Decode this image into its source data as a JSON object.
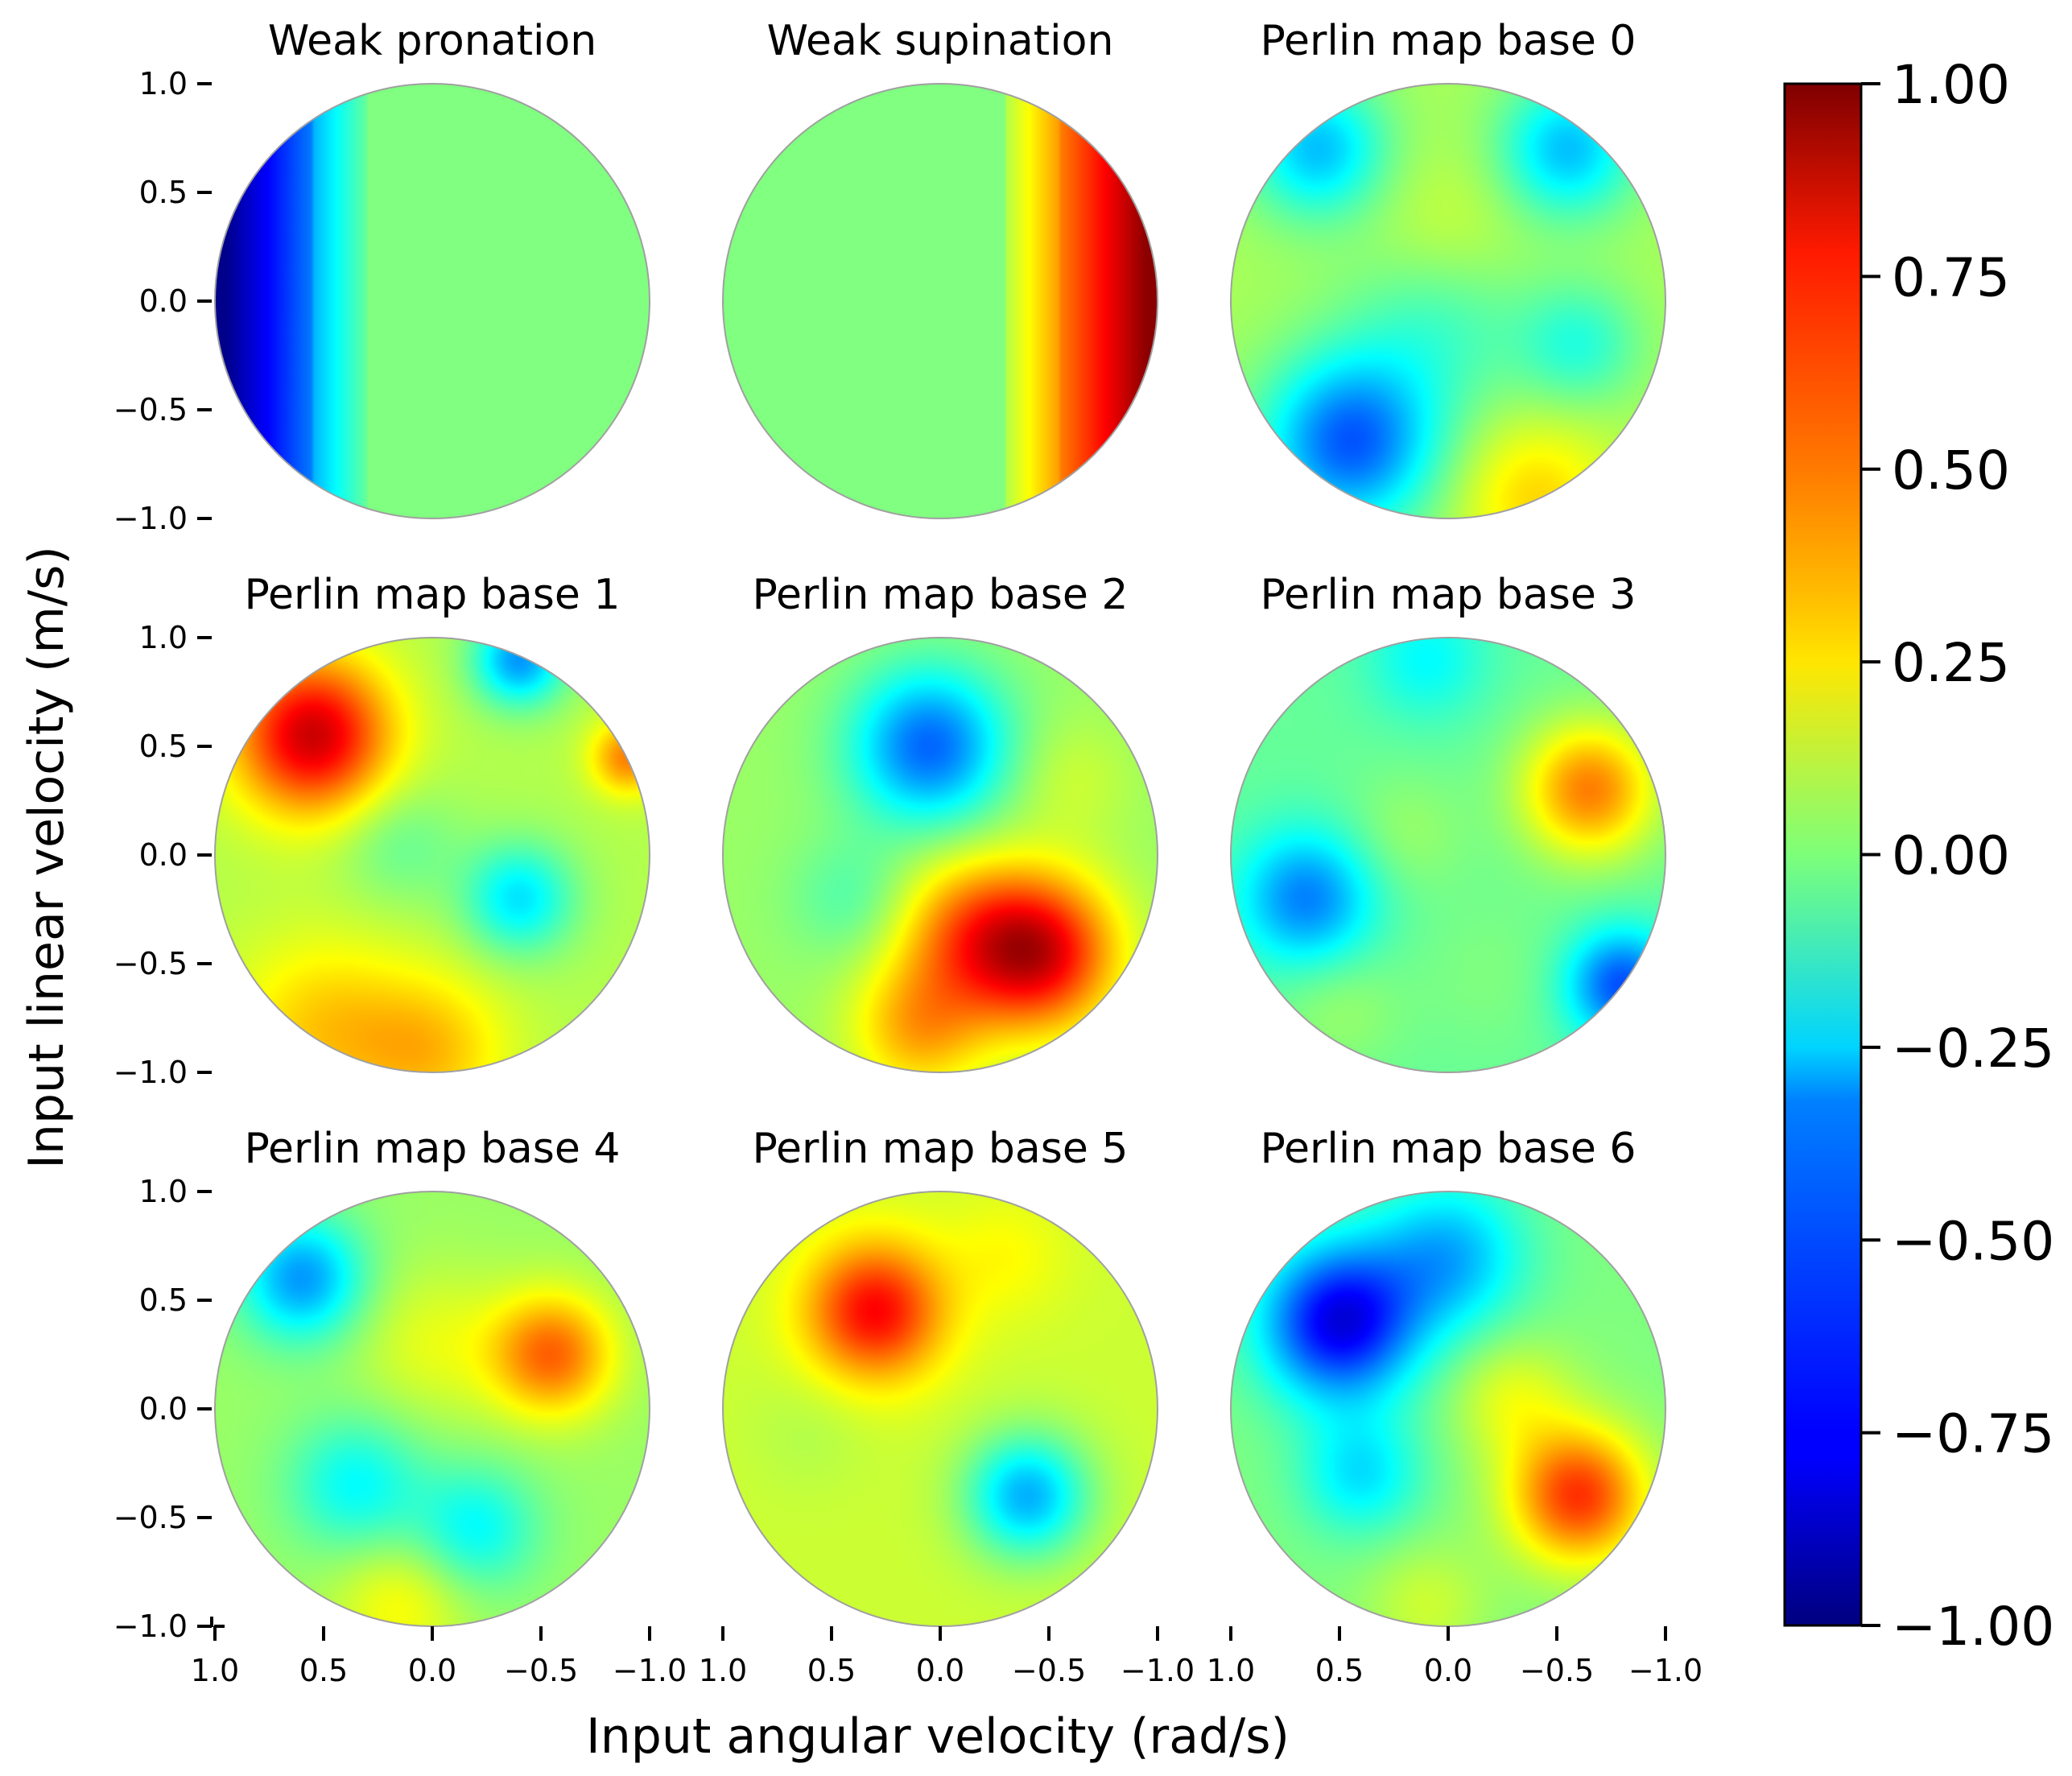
{
  "chart_data": {
    "type": "heatmap",
    "grid": "3x3",
    "xlabel": "Input angular velocity (rad/s)",
    "ylabel": "Input linear velocity (m/s)",
    "xlim": [
      1.0,
      -1.0
    ],
    "ylim": [
      -1.0,
      1.0
    ],
    "x_ticks": [
      1.0,
      0.5,
      0.0,
      -0.5,
      -1.0
    ],
    "y_ticks": [
      1.0,
      0.5,
      0.0,
      -0.5,
      -1.0
    ],
    "x_tick_labels": [
      "1.0",
      "0.5",
      "0.0",
      "−0.5",
      "−1.0"
    ],
    "y_tick_labels": [
      "1.0",
      "0.5",
      "0.0",
      "−0.5",
      "−1.0"
    ],
    "colormap": "jet",
    "colorbar": {
      "vmin": -1.0,
      "vmax": 1.0,
      "ticks": [
        1.0,
        0.75,
        0.5,
        0.25,
        0.0,
        -0.25,
        -0.5,
        -0.75,
        -1.0
      ],
      "tick_labels": [
        "1.00",
        "0.75",
        "0.50",
        "0.25",
        "0.00",
        "−0.25",
        "−0.50",
        "−0.75",
        "−1.00"
      ]
    },
    "panels": [
      {
        "title": "Weak pronation",
        "kind": "pronation",
        "blobs": []
      },
      {
        "title": "Weak supination",
        "kind": "supination",
        "blobs": []
      },
      {
        "title": "Perlin map base 0",
        "kind": "perlin",
        "base": 0.08,
        "blobs": [
          {
            "x": 0.6,
            "y": 0.7,
            "v": -0.45,
            "s": 0.22
          },
          {
            "x": -0.55,
            "y": 0.7,
            "v": -0.45,
            "s": 0.22
          },
          {
            "x": 0.45,
            "y": -0.65,
            "v": -0.65,
            "s": 0.28
          },
          {
            "x": 0.05,
            "y": -0.1,
            "v": -0.2,
            "s": 0.3
          },
          {
            "x": 0.0,
            "y": 0.3,
            "v": 0.1,
            "s": 0.25
          },
          {
            "x": -0.6,
            "y": -0.2,
            "v": -0.25,
            "s": 0.2
          },
          {
            "x": -0.4,
            "y": -0.9,
            "v": 0.25,
            "s": 0.25
          }
        ]
      },
      {
        "title": "Perlin map base 1",
        "kind": "perlin",
        "base": 0.1,
        "blobs": [
          {
            "x": 0.55,
            "y": 0.55,
            "v": 0.75,
            "s": 0.25
          },
          {
            "x": -0.4,
            "y": 0.9,
            "v": -0.55,
            "s": 0.15
          },
          {
            "x": -0.4,
            "y": -0.2,
            "v": -0.4,
            "s": 0.18
          },
          {
            "x": 0.5,
            "y": -0.8,
            "v": 0.25,
            "s": 0.3
          },
          {
            "x": -0.9,
            "y": 0.45,
            "v": 0.4,
            "s": 0.12
          },
          {
            "x": 0.0,
            "y": -0.9,
            "v": 0.25,
            "s": 0.25
          },
          {
            "x": 0.15,
            "y": 0.05,
            "v": -0.15,
            "s": 0.2
          }
        ]
      },
      {
        "title": "Perlin map base 2",
        "kind": "perlin",
        "base": 0.05,
        "blobs": [
          {
            "x": 0.05,
            "y": 0.5,
            "v": -0.6,
            "s": 0.25
          },
          {
            "x": -0.45,
            "y": -0.45,
            "v": 0.75,
            "s": 0.25
          },
          {
            "x": -0.1,
            "y": -0.35,
            "v": 0.35,
            "s": 0.25
          },
          {
            "x": 0.4,
            "y": -0.2,
            "v": -0.15,
            "s": 0.2
          },
          {
            "x": 0.1,
            "y": -0.8,
            "v": 0.35,
            "s": 0.22
          },
          {
            "x": -0.6,
            "y": 0.35,
            "v": 0.1,
            "s": 0.2
          }
        ]
      },
      {
        "title": "Perlin map base 3",
        "kind": "perlin",
        "base": -0.05,
        "blobs": [
          {
            "x": -0.65,
            "y": 0.3,
            "v": 0.55,
            "s": 0.22
          },
          {
            "x": 0.65,
            "y": -0.2,
            "v": -0.45,
            "s": 0.22
          },
          {
            "x": -0.8,
            "y": -0.6,
            "v": -0.55,
            "s": 0.18
          },
          {
            "x": -0.2,
            "y": -0.55,
            "v": 0.05,
            "s": 0.25
          },
          {
            "x": 0.1,
            "y": 0.9,
            "v": -0.2,
            "s": 0.2
          },
          {
            "x": 0.2,
            "y": 0.1,
            "v": 0.1,
            "s": 0.2
          },
          {
            "x": 0.5,
            "y": -0.7,
            "v": 0.1,
            "s": 0.2
          }
        ]
      },
      {
        "title": "Perlin map base 4",
        "kind": "perlin",
        "base": 0.05,
        "blobs": [
          {
            "x": 0.6,
            "y": 0.6,
            "v": -0.5,
            "s": 0.2
          },
          {
            "x": -0.55,
            "y": 0.25,
            "v": 0.5,
            "s": 0.2
          },
          {
            "x": 0.35,
            "y": -0.35,
            "v": -0.3,
            "s": 0.22
          },
          {
            "x": -0.2,
            "y": -0.55,
            "v": -0.3,
            "s": 0.2
          },
          {
            "x": 0.0,
            "y": 0.3,
            "v": 0.15,
            "s": 0.25
          },
          {
            "x": 0.15,
            "y": -0.9,
            "v": 0.2,
            "s": 0.22
          }
        ]
      },
      {
        "title": "Perlin map base 5",
        "kind": "perlin",
        "base": 0.15,
        "blobs": [
          {
            "x": 0.3,
            "y": 0.45,
            "v": 0.6,
            "s": 0.22
          },
          {
            "x": -0.4,
            "y": -0.4,
            "v": -0.55,
            "s": 0.2
          },
          {
            "x": 0.6,
            "y": -0.1,
            "v": -0.05,
            "s": 0.2
          },
          {
            "x": -0.3,
            "y": 0.7,
            "v": 0.1,
            "s": 0.2
          }
        ]
      },
      {
        "title": "Perlin map base 6",
        "kind": "perlin",
        "base": 0.0,
        "blobs": [
          {
            "x": 0.5,
            "y": 0.4,
            "v": -0.8,
            "s": 0.25
          },
          {
            "x": 0.0,
            "y": 0.7,
            "v": -0.4,
            "s": 0.25
          },
          {
            "x": -0.6,
            "y": -0.4,
            "v": 0.65,
            "s": 0.22
          },
          {
            "x": 0.4,
            "y": -0.3,
            "v": -0.3,
            "s": 0.2
          },
          {
            "x": -0.3,
            "y": 0.05,
            "v": 0.2,
            "s": 0.2
          },
          {
            "x": 0.1,
            "y": -0.9,
            "v": 0.15,
            "s": 0.2
          }
        ]
      }
    ]
  }
}
